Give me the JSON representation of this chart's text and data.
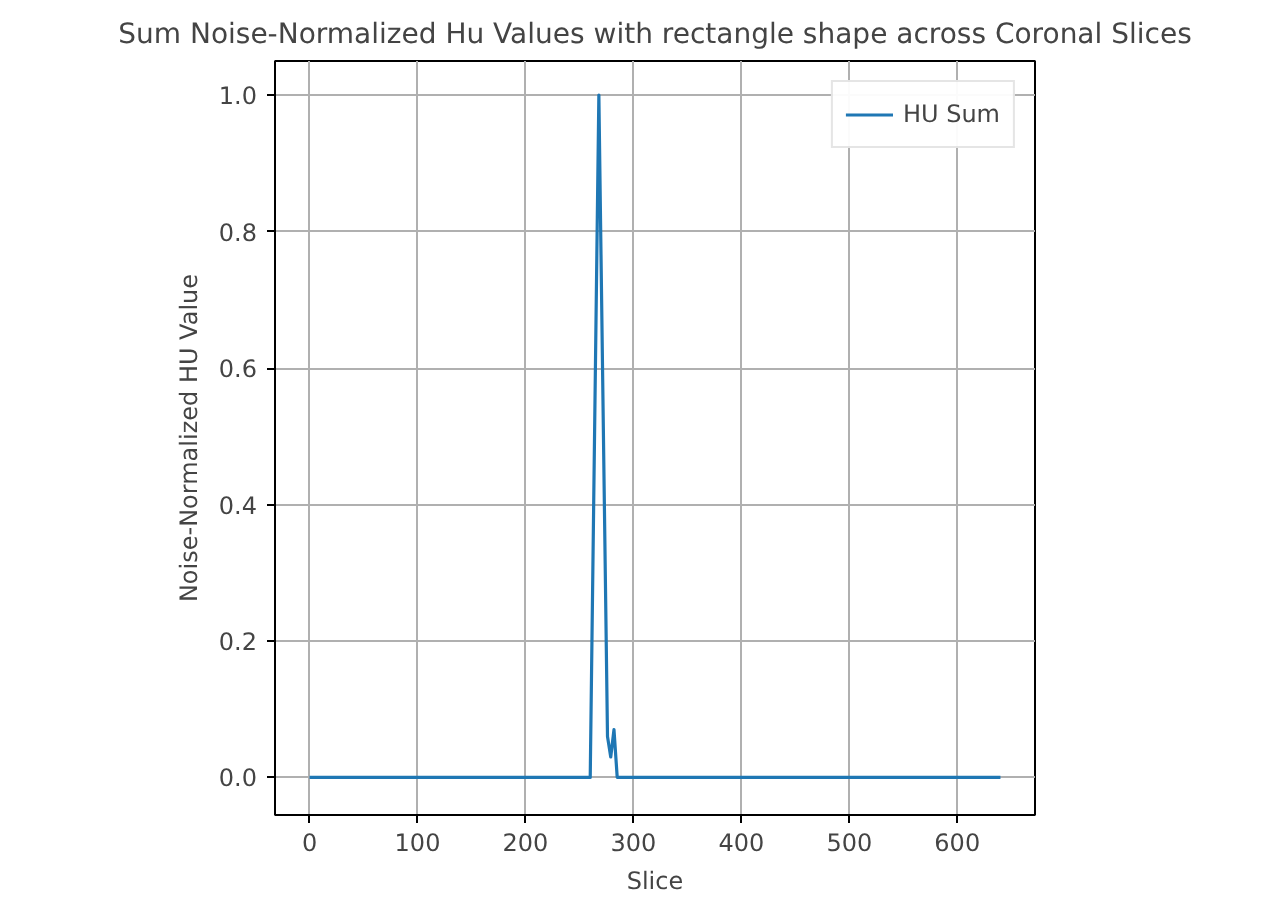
{
  "chart_data": {
    "type": "line",
    "title": "Sum Noise-Normalized Hu Values with rectangle shape across Coronal Slices",
    "xlabel": "Slice",
    "ylabel": "Noise-Normalized HU Value",
    "x": [
      0,
      100,
      200,
      260,
      268,
      276,
      279,
      282,
      285,
      400,
      500,
      640
    ],
    "series": [
      {
        "name": "HU Sum",
        "color": "#1f77b4",
        "values": [
          0,
          0,
          0,
          0,
          1.0,
          0.06,
          0.03,
          0.07,
          0,
          0,
          0,
          0
        ]
      }
    ],
    "xlim": [
      -32,
      672
    ],
    "ylim": [
      -0.055,
      1.05
    ],
    "xticks": [
      0,
      100,
      200,
      300,
      400,
      500,
      600
    ],
    "yticks": [
      {
        "value": 0,
        "label": "0.0"
      },
      {
        "value": 0.2,
        "label": "0.2"
      },
      {
        "value": 0.4,
        "label": "0.4"
      },
      {
        "value": 0.6,
        "label": "0.6"
      },
      {
        "value": 0.8,
        "label": "0.8"
      },
      {
        "value": 1.0,
        "label": "1.0"
      }
    ],
    "grid": true,
    "legend": "top right",
    "marker": "none",
    "line_style": "solid"
  }
}
